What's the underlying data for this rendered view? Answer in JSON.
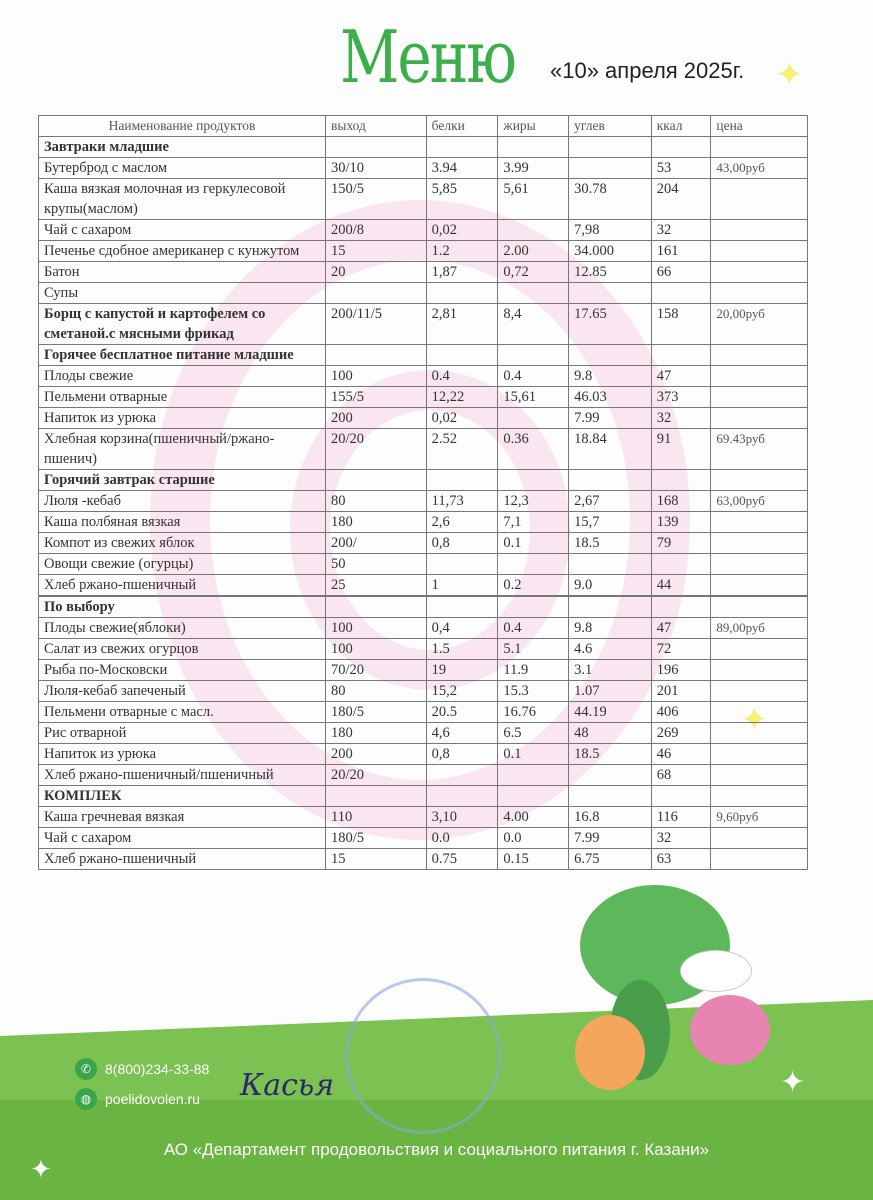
{
  "header": {
    "title": "Меню",
    "date": "«10» апреля  2025г."
  },
  "columns": [
    "Наименование продуктов",
    "выход",
    "белки",
    "жиры",
    "углев",
    "ккал",
    "цена"
  ],
  "rows": [
    {
      "name": "Завтраки младшие",
      "bold": true
    },
    {
      "name": "Бутерброд с маслом",
      "out": "30/10",
      "b": "3.94",
      "zh": "3.99",
      "u": "",
      "kcal": "53",
      "price": "43,00руб"
    },
    {
      "name": "Каша вязкая молочная из геркулесовой крупы(маслом)",
      "out": "150/5",
      "b": "5,85",
      "zh": "5,61",
      "u": "30.78",
      "kcal": "204"
    },
    {
      "name": "Чай с сахаром",
      "out": "200/8",
      "b": "0,02",
      "zh": "",
      "u": "7,98",
      "kcal": "32"
    },
    {
      "name": "Печенье сдобное американер с кунжутом",
      "out": "15",
      "b": "1.2",
      "zh": "2.00",
      "u": "34.000",
      "kcal": "161"
    },
    {
      "name": "Батон",
      "out": "20",
      "b": "1,87",
      "zh": "0,72",
      "u": "12.85",
      "kcal": "66"
    },
    {
      "name": "Супы"
    },
    {
      "name": "Борщ с капустой и картофелем со сметаной.с мясными фрикад",
      "bold": true,
      "out": "200/11/5",
      "b": "2,81",
      "zh": "8,4",
      "u": "17.65",
      "kcal": "158",
      "price": "20,00руб"
    },
    {
      "name": "Горячее бесплатное питание младшие",
      "bold": true
    },
    {
      "name": "Плоды свежие",
      "out": "100",
      "b": "0.4",
      "zh": "0.4",
      "u": "9.8",
      "kcal": "47"
    },
    {
      "name": "Пельмени отварные",
      "out": "155/5",
      "b": "12,22",
      "zh": "15,61",
      "u": "46.03",
      "kcal": "373"
    },
    {
      "name": "Напиток из урюка",
      "out": "200",
      "b": "0,02",
      "zh": "",
      "u": "7.99",
      "kcal": "32"
    },
    {
      "name": "Хлебная корзина(пшеничный/ржано-пшенич)",
      "out": "20/20",
      "b": "2.52",
      "zh": "0.36",
      "u": "18.84",
      "kcal": "91",
      "price": "69.43руб"
    },
    {
      "name": "Горячий завтрак старшие",
      "bold": true
    },
    {
      "name": "Люля -кебаб",
      "out": "80",
      "b": "11,73",
      "zh": "12,3",
      "u": "2,67",
      "kcal": "168",
      "price": "63,00руб"
    },
    {
      "name": "Каша полбяная вязкая",
      "out": "180",
      "b": "2,6",
      "zh": "7,1",
      "u": "15,7",
      "kcal": "139"
    },
    {
      "name": "Компот из свежих яблок",
      "out": "200/",
      "b": "0,8",
      "zh": "0.1",
      "u": "18.5",
      "kcal": "79"
    },
    {
      "name": "Овощи свежие (огурцы)",
      "out": "50"
    },
    {
      "name": "Хлеб ржано-пшеничный",
      "out": "25",
      "b": "1",
      "zh": "0.2",
      "u": "9.0",
      "kcal": "44"
    },
    {
      "name": ""
    },
    {
      "name": "По выбору",
      "bold": true
    },
    {
      "name": "Плоды свежие(яблоки)",
      "out": "100",
      "b": "0,4",
      "zh": "0.4",
      "u": "9.8",
      "kcal": "47",
      "price": "89,00руб"
    },
    {
      "name": "Салат из свежих огурцов",
      "out": "100",
      "b": "1.5",
      "zh": "5.1",
      "u": "4.6",
      "kcal": "72"
    },
    {
      "name": "Рыба по-Московски",
      "out": "70/20",
      "b": "19",
      "zh": "11.9",
      "u": "3.1",
      "kcal": "196"
    },
    {
      "name": "Люля-кебаб запеченый",
      "out": "80",
      "b": "15,2",
      "zh": "15.3",
      "u": "1.07",
      "kcal": "201"
    },
    {
      "name": "Пельмени отварные с масл.",
      "out": "180/5",
      "b": "20.5",
      "zh": "16.76",
      "u": "44.19",
      "kcal": "406"
    },
    {
      "name": "Рис отварной",
      "out": "180",
      "b": "4,6",
      "zh": "6.5",
      "u": "48",
      "kcal": "269"
    },
    {
      "name": "Напиток из урюка",
      "out": "200",
      "b": "0,8",
      "zh": "0.1",
      "u": "18.5",
      "kcal": "46"
    },
    {
      "name": "Хлеб ржано-пшеничный/пшеничный",
      "out": "20/20",
      "kcal": "68"
    },
    {
      "name": "КОМПЛЕК",
      "bold": true
    },
    {
      "name": "Каша гречневая вязкая",
      "out": "110",
      "b": "3,10",
      "zh": "4.00",
      "u": "16.8",
      "kcal": "116",
      "price": "9,60руб"
    },
    {
      "name": "Чай с сахаром",
      "out": "180/5",
      "b": "0.0",
      "zh": "0.0",
      "u": "7.99",
      "kcal": "32"
    },
    {
      "name": "Хлеб ржано-пшеничный",
      "out": "15",
      "b": "0.75",
      "zh": "0.15",
      "u": "6.75",
      "kcal": "63"
    }
  ],
  "footer": {
    "phone": "8(800)234-33-88",
    "website": "poelidovolen.ru",
    "org": "АО «Департамент продовольствия и социального питания г. Казани»",
    "phone_icon": "phone-icon",
    "web_icon": "globe-icon"
  },
  "colors": {
    "brand_green": "#3cae4a",
    "band_green": "#7cc253",
    "swirl_pink": "#f6dcea"
  }
}
